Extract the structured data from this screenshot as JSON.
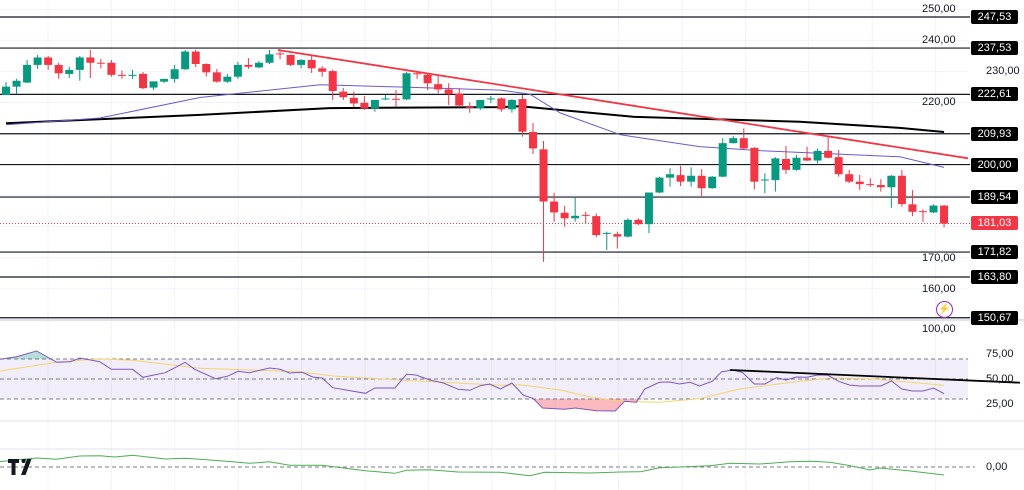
{
  "chart_data": {
    "type": "candlestick",
    "colors": {
      "up": "#089981",
      "down": "#f23645",
      "ma_fast": "#6a5acd",
      "ma_slow": "#000000",
      "trendline": "#f23645",
      "rsi": "#7e57c2",
      "rsi_ma": "#f5d46b",
      "momentum": "#4caf50",
      "current": "#f23645"
    },
    "candles": [
      [
        222.4,
        226.6,
        222.4,
        225.1
      ],
      [
        225.1,
        227.6,
        222.7,
        227.0
      ],
      [
        226.4,
        233.7,
        226.3,
        232.1
      ],
      [
        232.1,
        235.3,
        230.8,
        234.5
      ],
      [
        234.5,
        235.0,
        230.5,
        232.1
      ],
      [
        232.1,
        232.8,
        227.6,
        229.4
      ],
      [
        229.2,
        231.5,
        227.9,
        230.5
      ],
      [
        230.5,
        235.0,
        227.0,
        234.5
      ],
      [
        234.5,
        236.9,
        227.9,
        232.8
      ],
      [
        232.8,
        234.0,
        231.0,
        232.6
      ],
      [
        232.8,
        233.7,
        228.3,
        228.9
      ],
      [
        228.9,
        230.3,
        227.6,
        228.7
      ],
      [
        228.7,
        230.5,
        227.6,
        228.9
      ],
      [
        229.2,
        229.8,
        224.3,
        224.6
      ],
      [
        224.8,
        226.8,
        224.0,
        226.8
      ],
      [
        226.7,
        227.6,
        226.3,
        227.6
      ],
      [
        227.6,
        232.1,
        226.4,
        230.7
      ],
      [
        230.7,
        236.9,
        230.5,
        236.4
      ],
      [
        236.4,
        236.9,
        231.4,
        232.4
      ],
      [
        232.4,
        232.6,
        228.3,
        229.7
      ],
      [
        229.7,
        230.8,
        226.4,
        226.7
      ],
      [
        226.7,
        229.2,
        226.3,
        228.3
      ],
      [
        228.3,
        233.1,
        227.6,
        232.1
      ],
      [
        232.1,
        234.3,
        230.8,
        231.5
      ],
      [
        231.3,
        233.4,
        231.0,
        232.8
      ],
      [
        232.8,
        236.9,
        232.4,
        235.5
      ],
      [
        235.8,
        237.1,
        233.9,
        235.6
      ],
      [
        235.3,
        235.5,
        231.7,
        232.1
      ],
      [
        232.1,
        233.9,
        231.0,
        233.7
      ],
      [
        233.7,
        235.0,
        229.5,
        231.0
      ],
      [
        231.0,
        231.7,
        228.3,
        229.9
      ],
      [
        230.1,
        230.5,
        220.8,
        223.7
      ],
      [
        223.5,
        224.7,
        220.8,
        221.7
      ],
      [
        221.5,
        223.5,
        218.5,
        219.7
      ],
      [
        219.9,
        222.1,
        217.6,
        218.1
      ],
      [
        218.1,
        220.8,
        217.0,
        220.8
      ],
      [
        221.1,
        222.4,
        220.8,
        221.3
      ],
      [
        221.2,
        224.0,
        218.6,
        221.0
      ],
      [
        221.0,
        229.8,
        220.8,
        229.4
      ],
      [
        229.4,
        229.9,
        227.6,
        229.2
      ],
      [
        228.9,
        229.6,
        224.0,
        226.2
      ],
      [
        225.9,
        228.5,
        223.0,
        224.2
      ],
      [
        224.2,
        226.2,
        219.2,
        222.7
      ],
      [
        222.9,
        224.7,
        218.5,
        219.0
      ],
      [
        218.6,
        220.0,
        216.7,
        218.4
      ],
      [
        218.1,
        220.8,
        217.6,
        220.8
      ],
      [
        221.1,
        222.1,
        219.8,
        221.3
      ],
      [
        221.3,
        221.6,
        217.0,
        217.8
      ],
      [
        217.8,
        221.1,
        216.7,
        220.8
      ],
      [
        221.1,
        222.4,
        209.0,
        210.6
      ],
      [
        210.5,
        213.4,
        203.4,
        205.2
      ],
      [
        204.9,
        207.6,
        168.7,
        188.1
      ],
      [
        188.1,
        190.9,
        181.6,
        184.6
      ],
      [
        184.5,
        186.7,
        180.0,
        182.7
      ],
      [
        182.7,
        189.6,
        181.6,
        183.5
      ],
      [
        183.8,
        184.8,
        181.1,
        183.6
      ],
      [
        183.4,
        184.3,
        176.6,
        177.3
      ],
      [
        177.8,
        178.4,
        172.5,
        178.0
      ],
      [
        177.6,
        178.4,
        173.0,
        176.8
      ],
      [
        176.8,
        182.7,
        176.5,
        182.2
      ],
      [
        182.2,
        182.7,
        180.5,
        180.8
      ],
      [
        180.8,
        191.0,
        177.9,
        191.0
      ],
      [
        191.0,
        196.1,
        190.8,
        195.8
      ],
      [
        195.8,
        198.8,
        192.9,
        196.9
      ],
      [
        196.6,
        199.6,
        193.1,
        194.5
      ],
      [
        194.5,
        199.1,
        192.9,
        196.4
      ],
      [
        196.4,
        198.5,
        189.9,
        192.4
      ],
      [
        192.4,
        196.3,
        192.2,
        196.1
      ],
      [
        196.1,
        208.5,
        196.0,
        206.9
      ],
      [
        206.9,
        209.2,
        206.8,
        208.5
      ],
      [
        208.5,
        211.7,
        204.7,
        205.2
      ],
      [
        205.4,
        205.6,
        192.0,
        194.5
      ],
      [
        195.0,
        197.2,
        190.8,
        195.2
      ],
      [
        195.0,
        202.4,
        191.3,
        202.0
      ],
      [
        201.8,
        206.0,
        197.0,
        198.3
      ],
      [
        198.3,
        203.1,
        198.0,
        202.2
      ],
      [
        202.2,
        205.8,
        201.1,
        201.3
      ],
      [
        201.3,
        205.2,
        200.4,
        204.4
      ],
      [
        204.4,
        208.8,
        202.0,
        202.2
      ],
      [
        202.4,
        204.7,
        196.1,
        196.9
      ],
      [
        196.9,
        198.3,
        194.0,
        194.5
      ],
      [
        194.5,
        196.7,
        191.8,
        193.7
      ],
      [
        193.7,
        195.6,
        192.8,
        193.5
      ],
      [
        193.4,
        195.3,
        191.3,
        192.7
      ],
      [
        192.7,
        196.6,
        186.1,
        196.4
      ],
      [
        196.4,
        198.3,
        186.4,
        187.3
      ],
      [
        187.2,
        191.8,
        183.4,
        184.8
      ],
      [
        185.0,
        185.6,
        181.6,
        184.8
      ],
      [
        184.6,
        187.2,
        184.4,
        186.8
      ],
      [
        186.8,
        187.0,
        179.8,
        181.03
      ]
    ],
    "ma_slow": [
      [
        0,
        213.3
      ],
      [
        18.4,
        216.0
      ],
      [
        30.7,
        218.2
      ],
      [
        46.9,
        218.5
      ],
      [
        48.8,
        218.8
      ],
      [
        59.5,
        215.4
      ],
      [
        75.3,
        213.8
      ],
      [
        84.8,
        211.8
      ],
      [
        89,
        210.5
      ]
    ],
    "ma_fast": [
      [
        0,
        212.8
      ],
      [
        8.9,
        215.0
      ],
      [
        18.4,
        221.6
      ],
      [
        29.8,
        225.7
      ],
      [
        37.4,
        225.0
      ],
      [
        46.9,
        224.0
      ],
      [
        49.7,
        222.7
      ],
      [
        52.6,
        216.6
      ],
      [
        58.3,
        209.6
      ],
      [
        65.8,
        205.8
      ],
      [
        71.5,
        204.5
      ],
      [
        84.8,
        202.5
      ],
      [
        89,
        199.1
      ]
    ],
    "trendline": [
      [
        25.8,
        236.9
      ],
      [
        96.6,
        199.2
      ]
    ],
    "levels": [
      "247,53",
      "237,53",
      "222,61",
      "209,93",
      "200,00",
      "189,54",
      "171,82",
      "163,80",
      "150,67"
    ],
    "level_values": [
      247.53,
      237.53,
      222.61,
      209.93,
      200.0,
      189.54,
      171.82,
      163.8,
      150.67
    ],
    "current_price": {
      "value": 181.03,
      "label": "181,03"
    },
    "price_ticks": [
      {
        "v": 250,
        "label": "250,00"
      },
      {
        "v": 240,
        "label": "240,00"
      },
      {
        "v": 230,
        "label": "230,00"
      },
      {
        "v": 220,
        "label": "220,00"
      },
      {
        "v": 170,
        "label": "170,00"
      },
      {
        "v": 160,
        "label": "160,00"
      }
    ],
    "price_range": [
      145,
      253
    ],
    "rsi": {
      "ticks": [
        {
          "v": 100,
          "label": "100,00"
        },
        {
          "v": 75,
          "label": "75,00"
        },
        {
          "v": 50,
          "label": "50,00"
        },
        {
          "v": 25,
          "label": "25,00"
        }
      ],
      "bands": [
        70,
        50,
        30
      ],
      "values": [
        [
          -0.6,
          69.7
        ],
        [
          1,
          72.3
        ],
        [
          2.9,
          78
        ],
        [
          4.8,
          66.7
        ],
        [
          6.1,
          67.3
        ],
        [
          7,
          71
        ],
        [
          8.9,
          67.3
        ],
        [
          10,
          59.7
        ],
        [
          12,
          59.7
        ],
        [
          13,
          51.7
        ],
        [
          15.1,
          56.3
        ],
        [
          17,
          66.7
        ],
        [
          17.9,
          59.7
        ],
        [
          19.9,
          50.3
        ],
        [
          21,
          52.7
        ],
        [
          22,
          57.7
        ],
        [
          23.1,
          56.3
        ],
        [
          25,
          61
        ],
        [
          26,
          59.7
        ],
        [
          26.9,
          56
        ],
        [
          28.1,
          56.7
        ],
        [
          29.1,
          52
        ],
        [
          30,
          51
        ],
        [
          31,
          41.3
        ],
        [
          34.1,
          35.7
        ],
        [
          35,
          41
        ],
        [
          36.9,
          41
        ],
        [
          38,
          54.7
        ],
        [
          38.9,
          54
        ],
        [
          40.2,
          49
        ],
        [
          41.5,
          46
        ],
        [
          42.9,
          39.7
        ],
        [
          44,
          38.7
        ],
        [
          45,
          43.3
        ],
        [
          45.9,
          45
        ],
        [
          46.9,
          40
        ],
        [
          48,
          46
        ],
        [
          49.1,
          33.7
        ],
        [
          50,
          30.7
        ],
        [
          50.9,
          21
        ],
        [
          53,
          19.7
        ],
        [
          54,
          21
        ],
        [
          56,
          18.3
        ],
        [
          57.8,
          18
        ],
        [
          58.7,
          27.7
        ],
        [
          59.8,
          26.7
        ],
        [
          60.6,
          40
        ],
        [
          62,
          46.7
        ],
        [
          63,
          47
        ],
        [
          63.9,
          45
        ],
        [
          64.9,
          46.7
        ],
        [
          65.8,
          43
        ],
        [
          67,
          47.7
        ],
        [
          67.9,
          57.3
        ],
        [
          69,
          59
        ],
        [
          69.9,
          56.3
        ],
        [
          71,
          45
        ],
        [
          72,
          45
        ],
        [
          73.1,
          51.3
        ],
        [
          74,
          49
        ],
        [
          75,
          52
        ],
        [
          76,
          51.7
        ],
        [
          77,
          54
        ],
        [
          78,
          53.7
        ],
        [
          79,
          47.7
        ],
        [
          80,
          44
        ],
        [
          81,
          43
        ],
        [
          83,
          43
        ],
        [
          84,
          48
        ],
        [
          85,
          40
        ],
        [
          86,
          38
        ],
        [
          87,
          38
        ],
        [
          88,
          41
        ],
        [
          89,
          35.3
        ]
      ],
      "ma": [
        [
          -0.6,
          58
        ],
        [
          4.8,
          66.7
        ],
        [
          8.9,
          70.3
        ],
        [
          12,
          68.7
        ],
        [
          18.4,
          60.7
        ],
        [
          27.9,
          57.3
        ],
        [
          31,
          53
        ],
        [
          37.4,
          49
        ],
        [
          46.9,
          43.7
        ],
        [
          48.8,
          44.3
        ],
        [
          52.6,
          39
        ],
        [
          55.4,
          32
        ],
        [
          58.3,
          27.7
        ],
        [
          62,
          26.7
        ],
        [
          65.8,
          30.3
        ],
        [
          69.6,
          40
        ],
        [
          75.3,
          47.7
        ],
        [
          78.2,
          51
        ],
        [
          81.9,
          50.3
        ],
        [
          89,
          43.7
        ]
      ],
      "trendline": [
        [
          68.7,
          59
        ],
        [
          96.2,
          46.3
        ]
      ]
    },
    "momentum": {
      "zero_label": "0,00",
      "values": [
        [
          -0.6,
          5.3
        ],
        [
          2.9,
          9
        ],
        [
          4.8,
          7.7
        ],
        [
          7,
          11
        ],
        [
          8.9,
          11.3
        ],
        [
          10.3,
          10
        ],
        [
          12,
          11.7
        ],
        [
          15.1,
          8
        ],
        [
          17,
          8.7
        ],
        [
          18.4,
          7.7
        ],
        [
          21.5,
          5.3
        ],
        [
          23.1,
          3.7
        ],
        [
          25,
          5.3
        ],
        [
          26.9,
          1.7
        ],
        [
          30,
          1.7
        ],
        [
          32,
          -1
        ],
        [
          34.1,
          -3.7
        ],
        [
          36.9,
          -6.3
        ],
        [
          38,
          -3.3
        ],
        [
          40.2,
          -2.7
        ],
        [
          42.9,
          -5
        ],
        [
          46.9,
          -5.3
        ],
        [
          49.7,
          -8.7
        ],
        [
          51.1,
          -5.3
        ],
        [
          55.4,
          -6
        ],
        [
          58.3,
          -5
        ],
        [
          60.2,
          -4.7
        ],
        [
          62,
          -0.7
        ],
        [
          63.9,
          0
        ],
        [
          66.8,
          1.3
        ],
        [
          68.7,
          3.7
        ],
        [
          71.5,
          3
        ],
        [
          74.4,
          5.3
        ],
        [
          76.3,
          5.7
        ],
        [
          78.2,
          4.7
        ],
        [
          80.1,
          1.3
        ],
        [
          82,
          -3
        ],
        [
          82.9,
          -1
        ],
        [
          85.8,
          -4
        ],
        [
          89,
          -8
        ]
      ]
    }
  },
  "branding": {
    "logo_text": "TV"
  },
  "icons": {
    "alert": "lightning-icon"
  }
}
